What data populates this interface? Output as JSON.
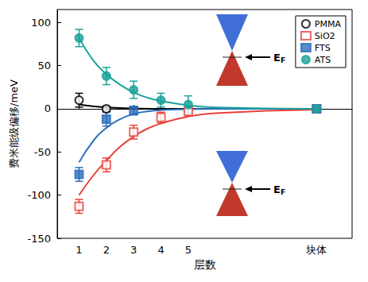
{
  "chart_data": {
    "type": "scatter",
    "x_label": "层数",
    "y_label": "费米能级偏移/meV",
    "xlim": [
      0.2,
      11
    ],
    "xticks": [
      1,
      2,
      3,
      4,
      5,
      {
        "value": 9.7,
        "label": "块体"
      }
    ],
    "ylim": [
      -150,
      115
    ],
    "yticks": [
      -150,
      -100,
      -50,
      0,
      50,
      100
    ],
    "grid": false,
    "legend": "upper right",
    "annotations": [
      {
        "text": "EF"
      },
      {
        "text": "EF"
      }
    ],
    "series": [
      {
        "name": "PMMA",
        "color": "#000000",
        "marker": "open_circle",
        "x": [
          1,
          2,
          9.7
        ],
        "values": [
          10,
          0,
          0
        ],
        "errors": [
          8,
          3,
          3
        ],
        "fit": {
          "x": [
            1,
            1.5,
            2,
            3,
            4,
            6,
            9.7
          ],
          "values": [
            5,
            3,
            1.5,
            0.5,
            0,
            0,
            0
          ]
        }
      },
      {
        "name": "SiO2",
        "color": "#e8413c",
        "marker": "open_square",
        "x": [
          1,
          2,
          3,
          4,
          5,
          9.7
        ],
        "values": [
          -113,
          -65,
          -27,
          -10,
          -3,
          0
        ],
        "errors": [
          8,
          8,
          8,
          6,
          5,
          3
        ],
        "fit": {
          "x": [
            1,
            1.5,
            2,
            2.5,
            3,
            3.5,
            4,
            5,
            6,
            9.7
          ],
          "values": [
            -100,
            -78,
            -60,
            -44,
            -32,
            -23,
            -17,
            -9,
            -5,
            -1
          ]
        }
      },
      {
        "name": "FTS",
        "color": "#2a6ebb",
        "marker": "square",
        "x": [
          1,
          2,
          3,
          9.7
        ],
        "values": [
          -76,
          -12,
          -2,
          0
        ],
        "errors": [
          8,
          8,
          5,
          3
        ],
        "fit": {
          "x": [
            1,
            1.5,
            2,
            2.5,
            3,
            3.5,
            4,
            5,
            6,
            9.7
          ],
          "values": [
            -62,
            -38,
            -22,
            -12,
            -6,
            -3,
            -1.5,
            -0.5,
            0,
            0
          ]
        }
      },
      {
        "name": "ATS",
        "color": "#1aa39a",
        "marker": "circle",
        "x": [
          1,
          2,
          3,
          4,
          5,
          9.7
        ],
        "values": [
          82,
          38,
          22,
          10,
          5,
          0
        ],
        "errors": [
          10,
          10,
          10,
          8,
          10,
          3
        ],
        "fit": {
          "x": [
            1,
            1.5,
            2,
            2.5,
            3,
            3.5,
            4,
            5,
            6,
            9.7
          ],
          "values": [
            82,
            57,
            40,
            28,
            19,
            13,
            9,
            4,
            1.5,
            0
          ]
        }
      }
    ]
  }
}
